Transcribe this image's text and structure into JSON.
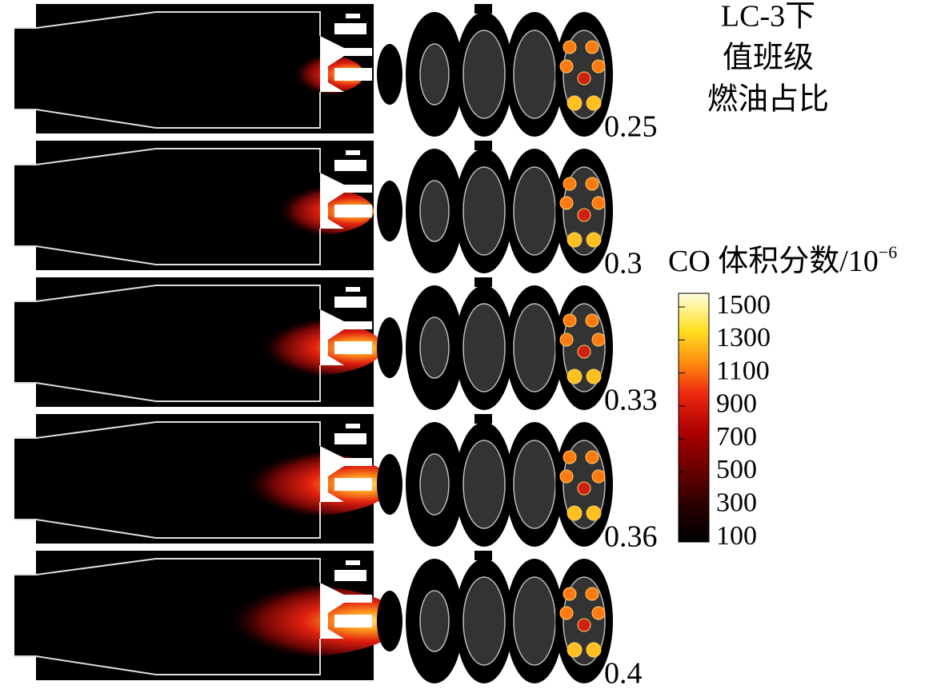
{
  "header": {
    "lines": [
      "LC-3下",
      "值班级",
      "燃油占比"
    ]
  },
  "rows": [
    {
      "label": "0.25"
    },
    {
      "label": "0.3"
    },
    {
      "label": "0.33"
    },
    {
      "label": "0.36"
    },
    {
      "label": "0.4"
    }
  ],
  "colorbar": {
    "title": "CO 体积分数/10",
    "title_superscript": "−6",
    "ticks": [
      1500,
      1300,
      1100,
      900,
      700,
      500,
      300,
      100
    ]
  }
}
